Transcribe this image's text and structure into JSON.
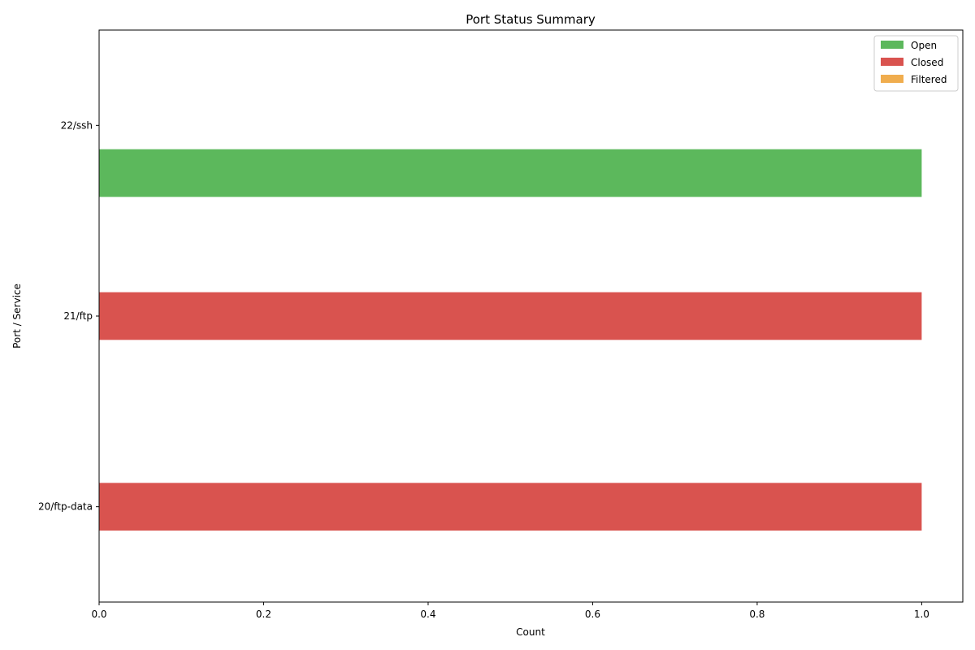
{
  "chart_data": {
    "type": "bar",
    "orientation": "horizontal",
    "title": "Port Status Summary",
    "xlabel": "Count",
    "ylabel": "Port / Service",
    "categories": [
      "22/ssh",
      "21/ftp",
      "20/ftp-data"
    ],
    "series": [
      {
        "name": "Open",
        "color": "#5cb85c",
        "values": [
          1,
          0,
          0
        ]
      },
      {
        "name": "Closed",
        "color": "#d9534f",
        "values": [
          0,
          1,
          1
        ]
      },
      {
        "name": "Filtered",
        "color": "#f0ad4e",
        "values": [
          0,
          0,
          0
        ]
      }
    ],
    "xlim": [
      0,
      1.05
    ],
    "xticks": [
      0.0,
      0.2,
      0.4,
      0.6,
      0.8,
      1.0
    ],
    "xtick_labels": [
      "0.0",
      "0.2",
      "0.4",
      "0.6",
      "0.8",
      "1.0"
    ],
    "grid": false,
    "legend_position": "top-right"
  }
}
